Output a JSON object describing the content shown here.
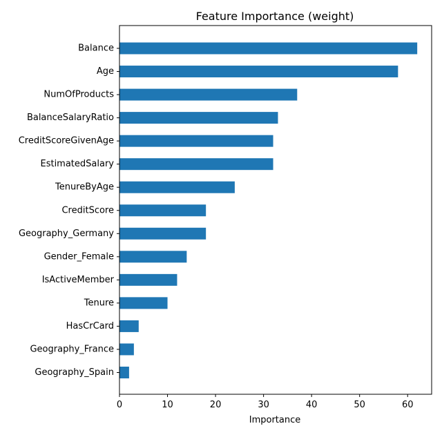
{
  "chart_data": {
    "type": "bar",
    "orientation": "horizontal",
    "title": "Feature Importance (weight)",
    "xlabel": "Importance",
    "ylabel": "",
    "categories": [
      "Balance",
      "Age",
      "NumOfProducts",
      "BalanceSalaryRatio",
      "CreditScoreGivenAge",
      "EstimatedSalary",
      "TenureByAge",
      "CreditScore",
      "Geography_Germany",
      "Gender_Female",
      "IsActiveMember",
      "Tenure",
      "HasCrCard",
      "Geography_France",
      "Geography_Spain"
    ],
    "values": [
      62,
      58,
      37,
      33,
      32,
      32,
      24,
      18,
      18,
      14,
      12,
      10,
      4,
      3,
      2
    ],
    "xlim": [
      0,
      65
    ],
    "xticks": [
      0,
      10,
      20,
      30,
      40,
      50,
      60
    ],
    "grid": false,
    "legend": "none",
    "bar_color": "#1f77b4"
  }
}
